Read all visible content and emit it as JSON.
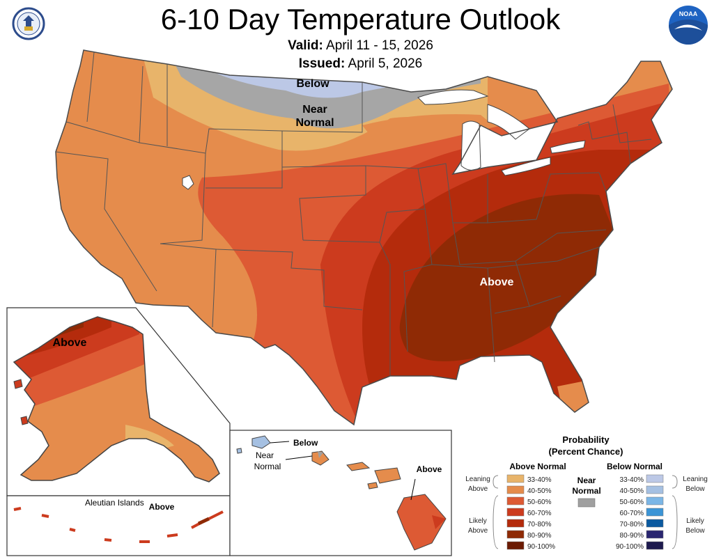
{
  "title": "6-10 Day Temperature Outlook",
  "valid_label": "Valid:",
  "valid_dates": "April 11 - 15, 2026",
  "issued_label": "Issued:",
  "issued_date": "April 5, 2026",
  "logos": {
    "left": "department-of-commerce-seal",
    "right": "noaa-logo",
    "left_seal_text": "DEPARTMENT OF COMMERCE UNITED STATES OF AMERICA",
    "right_logo_text": "NOAA"
  },
  "map_labels": {
    "conus_below": "Below",
    "conus_near": "Near",
    "conus_normal": "Normal",
    "conus_above": "Above",
    "alaska_above": "Above",
    "aleutian_title": "Aleutian Islands",
    "aleutian_above": "Above",
    "hawaii_below": "Below",
    "hawaii_near": "Near",
    "hawaii_normal": "Normal",
    "hawaii_above": "Above"
  },
  "legend": {
    "title_line1": "Probability",
    "title_line2": "(Percent Chance)",
    "above_header": "Above Normal",
    "below_header": "Below Normal",
    "near_line1": "Near",
    "near_line2": "Normal",
    "near_color": "#a0a0a0",
    "leaning_above": [
      "Leaning",
      "Above"
    ],
    "likely_above": [
      "Likely",
      "Above"
    ],
    "leaning_below": [
      "Leaning",
      "Below"
    ],
    "likely_below": [
      "Likely",
      "Below"
    ],
    "above_classes": [
      {
        "range": "33-40%",
        "color": "#e8b46a"
      },
      {
        "range": "40-50%",
        "color": "#e58c4c"
      },
      {
        "range": "50-60%",
        "color": "#dd5a34"
      },
      {
        "range": "60-70%",
        "color": "#cc3b1e"
      },
      {
        "range": "70-80%",
        "color": "#b42b0c"
      },
      {
        "range": "80-90%",
        "color": "#8f2a05"
      },
      {
        "range": "90-100%",
        "color": "#6b1a02"
      }
    ],
    "below_classes": [
      {
        "range": "33-40%",
        "color": "#bcc8e6"
      },
      {
        "range": "40-50%",
        "color": "#a5c0e2"
      },
      {
        "range": "50-60%",
        "color": "#7bb6e6"
      },
      {
        "range": "60-70%",
        "color": "#3c95d6"
      },
      {
        "range": "70-80%",
        "color": "#0b5aa0"
      },
      {
        "range": "80-90%",
        "color": "#2a2670"
      },
      {
        "range": "90-100%",
        "color": "#1d1a4e"
      }
    ]
  }
}
